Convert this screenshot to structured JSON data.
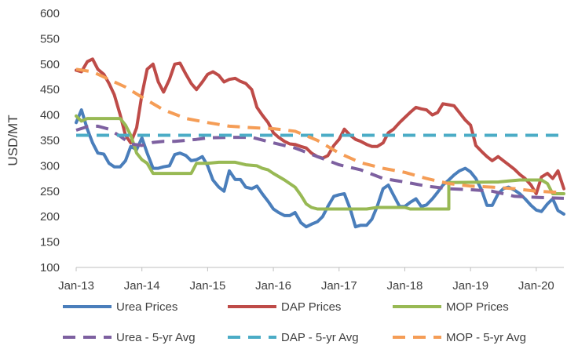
{
  "chart_data": {
    "type": "line",
    "title": "",
    "xlabel": "",
    "ylabel": "USD/MT",
    "ylim": [
      100,
      600
    ],
    "yticks": [
      100,
      150,
      200,
      250,
      300,
      350,
      400,
      450,
      500,
      550,
      600
    ],
    "xlim": [
      2013.0,
      2020.42
    ],
    "xticks": [
      {
        "label": "Jan-13",
        "x": 2013
      },
      {
        "label": "Jan-14",
        "x": 2014
      },
      {
        "label": "Jan-15",
        "x": 2015
      },
      {
        "label": "Jan-16",
        "x": 2016
      },
      {
        "label": "Jan-17",
        "x": 2017
      },
      {
        "label": "Jan-18",
        "x": 2018
      },
      {
        "label": "Jan-19",
        "x": 2019
      },
      {
        "label": "Jan-20",
        "x": 2020
      }
    ],
    "grid": false,
    "legend_position": "bottom",
    "series": [
      {
        "name": "Urea Prices",
        "color": "#4a7ebb",
        "style": "solid",
        "points": [
          [
            2013.0,
            385
          ],
          [
            2013.08,
            410
          ],
          [
            2013.17,
            372
          ],
          [
            2013.25,
            345
          ],
          [
            2013.33,
            325
          ],
          [
            2013.42,
            323
          ],
          [
            2013.5,
            305
          ],
          [
            2013.58,
            298
          ],
          [
            2013.67,
            298
          ],
          [
            2013.75,
            310
          ],
          [
            2013.83,
            338
          ],
          [
            2013.92,
            332
          ],
          [
            2014.0,
            355
          ],
          [
            2014.08,
            325
          ],
          [
            2014.17,
            295
          ],
          [
            2014.25,
            295
          ],
          [
            2014.33,
            298
          ],
          [
            2014.42,
            300
          ],
          [
            2014.5,
            322
          ],
          [
            2014.58,
            325
          ],
          [
            2014.67,
            320
          ],
          [
            2014.75,
            310
          ],
          [
            2014.83,
            312
          ],
          [
            2014.92,
            318
          ],
          [
            2015.0,
            300
          ],
          [
            2015.08,
            272
          ],
          [
            2015.17,
            258
          ],
          [
            2015.25,
            250
          ],
          [
            2015.33,
            290
          ],
          [
            2015.42,
            273
          ],
          [
            2015.5,
            273
          ],
          [
            2015.58,
            258
          ],
          [
            2015.67,
            255
          ],
          [
            2015.75,
            260
          ],
          [
            2015.83,
            245
          ],
          [
            2015.92,
            230
          ],
          [
            2016.0,
            215
          ],
          [
            2016.08,
            208
          ],
          [
            2016.17,
            202
          ],
          [
            2016.25,
            202
          ],
          [
            2016.33,
            208
          ],
          [
            2016.42,
            188
          ],
          [
            2016.5,
            180
          ],
          [
            2016.58,
            185
          ],
          [
            2016.67,
            190
          ],
          [
            2016.75,
            200
          ],
          [
            2016.83,
            220
          ],
          [
            2016.92,
            240
          ],
          [
            2017.0,
            243
          ],
          [
            2017.08,
            245
          ],
          [
            2017.17,
            215
          ],
          [
            2017.25,
            180
          ],
          [
            2017.33,
            183
          ],
          [
            2017.42,
            183
          ],
          [
            2017.5,
            195
          ],
          [
            2017.58,
            220
          ],
          [
            2017.67,
            255
          ],
          [
            2017.75,
            262
          ],
          [
            2017.83,
            242
          ],
          [
            2017.92,
            220
          ],
          [
            2018.0,
            220
          ],
          [
            2018.08,
            228
          ],
          [
            2018.17,
            235
          ],
          [
            2018.25,
            220
          ],
          [
            2018.33,
            223
          ],
          [
            2018.42,
            235
          ],
          [
            2018.5,
            248
          ],
          [
            2018.58,
            262
          ],
          [
            2018.67,
            272
          ],
          [
            2018.75,
            282
          ],
          [
            2018.83,
            290
          ],
          [
            2018.92,
            295
          ],
          [
            2019.0,
            288
          ],
          [
            2019.08,
            275
          ],
          [
            2019.17,
            252
          ],
          [
            2019.25,
            222
          ],
          [
            2019.33,
            222
          ],
          [
            2019.42,
            245
          ],
          [
            2019.5,
            255
          ],
          [
            2019.58,
            258
          ],
          [
            2019.67,
            252
          ],
          [
            2019.75,
            245
          ],
          [
            2019.83,
            235
          ],
          [
            2019.92,
            222
          ],
          [
            2020.0,
            213
          ],
          [
            2020.08,
            210
          ],
          [
            2020.17,
            225
          ],
          [
            2020.25,
            235
          ],
          [
            2020.33,
            212
          ],
          [
            2020.42,
            205
          ]
        ]
      },
      {
        "name": "DAP Prices",
        "color": "#be4b48",
        "style": "solid",
        "points": [
          [
            2013.0,
            488
          ],
          [
            2013.08,
            485
          ],
          [
            2013.17,
            505
          ],
          [
            2013.25,
            510
          ],
          [
            2013.33,
            490
          ],
          [
            2013.42,
            480
          ],
          [
            2013.5,
            462
          ],
          [
            2013.58,
            440
          ],
          [
            2013.67,
            400
          ],
          [
            2013.75,
            360
          ],
          [
            2013.83,
            345
          ],
          [
            2013.92,
            375
          ],
          [
            2014.0,
            440
          ],
          [
            2014.08,
            490
          ],
          [
            2014.17,
            500
          ],
          [
            2014.25,
            465
          ],
          [
            2014.33,
            445
          ],
          [
            2014.42,
            470
          ],
          [
            2014.5,
            500
          ],
          [
            2014.58,
            502
          ],
          [
            2014.67,
            480
          ],
          [
            2014.75,
            462
          ],
          [
            2014.83,
            450
          ],
          [
            2014.92,
            465
          ],
          [
            2015.0,
            480
          ],
          [
            2015.08,
            485
          ],
          [
            2015.17,
            478
          ],
          [
            2015.25,
            465
          ],
          [
            2015.33,
            470
          ],
          [
            2015.42,
            472
          ],
          [
            2015.5,
            466
          ],
          [
            2015.58,
            462
          ],
          [
            2015.67,
            450
          ],
          [
            2015.75,
            415
          ],
          [
            2015.83,
            400
          ],
          [
            2015.92,
            385
          ],
          [
            2016.0,
            365
          ],
          [
            2016.08,
            356
          ],
          [
            2016.17,
            348
          ],
          [
            2016.25,
            343
          ],
          [
            2016.33,
            342
          ],
          [
            2016.42,
            338
          ],
          [
            2016.5,
            335
          ],
          [
            2016.58,
            325
          ],
          [
            2016.67,
            318
          ],
          [
            2016.75,
            315
          ],
          [
            2016.83,
            320
          ],
          [
            2016.92,
            340
          ],
          [
            2017.0,
            352
          ],
          [
            2017.08,
            372
          ],
          [
            2017.17,
            360
          ],
          [
            2017.25,
            352
          ],
          [
            2017.33,
            348
          ],
          [
            2017.42,
            342
          ],
          [
            2017.5,
            338
          ],
          [
            2017.58,
            338
          ],
          [
            2017.67,
            345
          ],
          [
            2017.75,
            365
          ],
          [
            2017.83,
            372
          ],
          [
            2017.92,
            385
          ],
          [
            2018.0,
            395
          ],
          [
            2018.08,
            405
          ],
          [
            2018.17,
            415
          ],
          [
            2018.25,
            412
          ],
          [
            2018.33,
            410
          ],
          [
            2018.42,
            400
          ],
          [
            2018.5,
            405
          ],
          [
            2018.58,
            422
          ],
          [
            2018.67,
            420
          ],
          [
            2018.75,
            418
          ],
          [
            2018.83,
            405
          ],
          [
            2018.92,
            390
          ],
          [
            2019.0,
            380
          ],
          [
            2019.08,
            340
          ],
          [
            2019.17,
            328
          ],
          [
            2019.25,
            318
          ],
          [
            2019.33,
            310
          ],
          [
            2019.42,
            318
          ],
          [
            2019.5,
            310
          ],
          [
            2019.58,
            302
          ],
          [
            2019.67,
            293
          ],
          [
            2019.75,
            283
          ],
          [
            2019.83,
            275
          ],
          [
            2019.92,
            262
          ],
          [
            2020.0,
            245
          ],
          [
            2020.08,
            278
          ],
          [
            2020.17,
            285
          ],
          [
            2020.25,
            275
          ],
          [
            2020.33,
            290
          ],
          [
            2020.42,
            255
          ]
        ]
      },
      {
        "name": "MOP Prices",
        "color": "#98b954",
        "style": "solid",
        "points": [
          [
            2013.0,
            398
          ],
          [
            2013.08,
            388
          ],
          [
            2013.17,
            393
          ],
          [
            2013.25,
            393
          ],
          [
            2013.67,
            393
          ],
          [
            2013.75,
            380
          ],
          [
            2013.83,
            360
          ],
          [
            2013.92,
            325
          ],
          [
            2014.0,
            312
          ],
          [
            2014.08,
            305
          ],
          [
            2014.17,
            285
          ],
          [
            2014.75,
            285
          ],
          [
            2014.83,
            305
          ],
          [
            2015.0,
            305
          ],
          [
            2015.17,
            307
          ],
          [
            2015.42,
            307
          ],
          [
            2015.58,
            302
          ],
          [
            2015.75,
            300
          ],
          [
            2015.83,
            295
          ],
          [
            2015.92,
            292
          ],
          [
            2016.0,
            285
          ],
          [
            2016.17,
            272
          ],
          [
            2016.33,
            258
          ],
          [
            2016.42,
            242
          ],
          [
            2016.5,
            225
          ],
          [
            2016.58,
            218
          ],
          [
            2016.67,
            215
          ],
          [
            2017.42,
            215
          ],
          [
            2017.58,
            218
          ],
          [
            2018.0,
            218
          ],
          [
            2018.08,
            215
          ],
          [
            2018.67,
            215
          ],
          [
            2018.67,
            267
          ],
          [
            2019.33,
            268
          ],
          [
            2019.42,
            268
          ],
          [
            2019.58,
            270
          ],
          [
            2019.75,
            272
          ],
          [
            2020.08,
            272
          ],
          [
            2020.17,
            265
          ],
          [
            2020.25,
            245
          ],
          [
            2020.42,
            245
          ]
        ]
      },
      {
        "name": "Urea - 5-yr Avg",
        "color": "#7d60a0",
        "style": "dashed",
        "points": [
          [
            2013.0,
            370
          ],
          [
            2013.17,
            377
          ],
          [
            2013.33,
            378
          ],
          [
            2013.5,
            372
          ],
          [
            2013.67,
            358
          ],
          [
            2013.83,
            343
          ],
          [
            2014.0,
            340
          ],
          [
            2014.17,
            346
          ],
          [
            2014.33,
            348
          ],
          [
            2014.5,
            348
          ],
          [
            2014.67,
            350
          ],
          [
            2014.83,
            352
          ],
          [
            2015.0,
            355
          ],
          [
            2015.33,
            356
          ],
          [
            2015.67,
            356
          ],
          [
            2016.0,
            345
          ],
          [
            2016.33,
            335
          ],
          [
            2016.67,
            318
          ],
          [
            2017.0,
            302
          ],
          [
            2017.33,
            292
          ],
          [
            2017.67,
            275
          ],
          [
            2018.0,
            268
          ],
          [
            2018.33,
            260
          ],
          [
            2018.67,
            255
          ],
          [
            2019.0,
            253
          ],
          [
            2019.33,
            250
          ],
          [
            2019.67,
            240
          ],
          [
            2020.0,
            238
          ],
          [
            2020.42,
            236
          ]
        ]
      },
      {
        "name": "DAP - 5-yr Avg",
        "color": "#4bacc6",
        "style": "dashed",
        "points": [
          [
            2013.0,
            360
          ],
          [
            2020.42,
            360
          ]
        ]
      },
      {
        "name": "MOP - 5-yr Avg",
        "color": "#f59d56",
        "style": "dashed",
        "points": [
          [
            2013.0,
            490
          ],
          [
            2013.25,
            485
          ],
          [
            2013.5,
            470
          ],
          [
            2013.75,
            455
          ],
          [
            2014.0,
            435
          ],
          [
            2014.33,
            410
          ],
          [
            2014.67,
            393
          ],
          [
            2015.0,
            385
          ],
          [
            2015.33,
            378
          ],
          [
            2015.67,
            375
          ],
          [
            2016.0,
            373
          ],
          [
            2016.33,
            368
          ],
          [
            2016.67,
            350
          ],
          [
            2017.0,
            325
          ],
          [
            2017.33,
            306
          ],
          [
            2017.67,
            295
          ],
          [
            2018.0,
            287
          ],
          [
            2018.33,
            275
          ],
          [
            2018.67,
            265
          ],
          [
            2019.0,
            260
          ],
          [
            2019.33,
            258
          ],
          [
            2019.67,
            255
          ],
          [
            2020.0,
            250
          ],
          [
            2020.42,
            247
          ]
        ]
      }
    ]
  }
}
